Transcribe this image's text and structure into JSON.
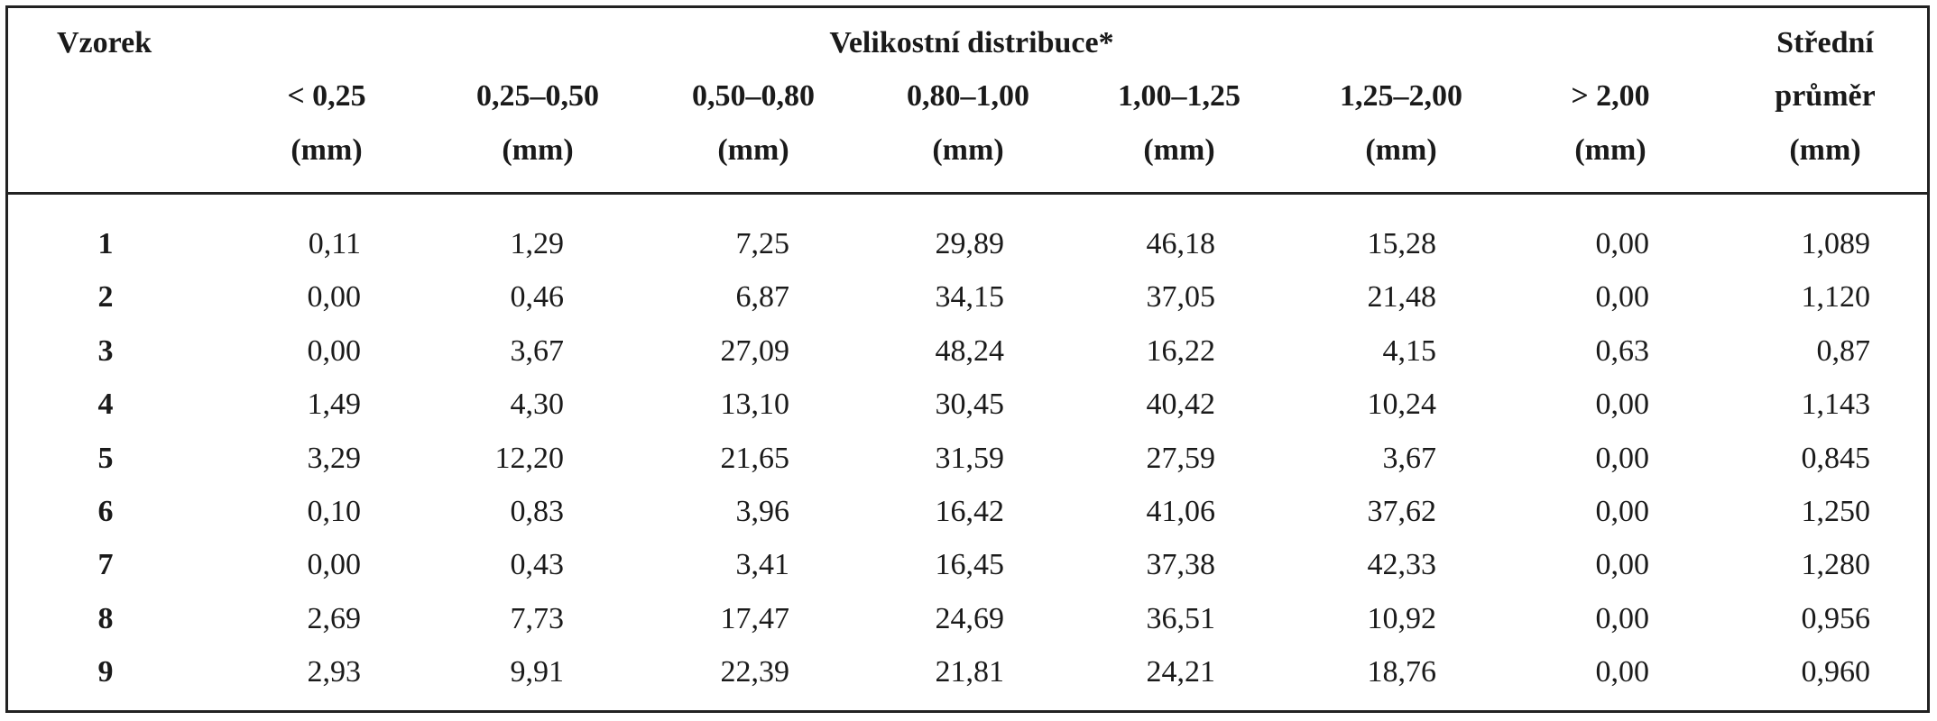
{
  "table": {
    "header": {
      "sample": "Vzorek",
      "group": "Velikostní distribuce*",
      "mean_line1": "Střední",
      "mean_line2": "průměr",
      "mean_unit": "(mm)",
      "columns": [
        {
          "range": "< 0,25",
          "unit": "(mm)"
        },
        {
          "range": "0,25–0,50",
          "unit": "(mm)"
        },
        {
          "range": "0,50–0,80",
          "unit": "(mm)"
        },
        {
          "range": "0,80–1,00",
          "unit": "(mm)"
        },
        {
          "range": "1,00–1,25",
          "unit": "(mm)"
        },
        {
          "range": "1,25–2,00",
          "unit": "(mm)"
        },
        {
          "range": "> 2,00",
          "unit": "(mm)"
        }
      ]
    },
    "rows": [
      {
        "sample": "1",
        "values": [
          "0,11",
          "1,29",
          "7,25",
          "29,89",
          "46,18",
          "15,28",
          "0,00"
        ],
        "mean": "1,089"
      },
      {
        "sample": "2",
        "values": [
          "0,00",
          "0,46",
          "6,87",
          "34,15",
          "37,05",
          "21,48",
          "0,00"
        ],
        "mean": "1,120"
      },
      {
        "sample": "3",
        "values": [
          "0,00",
          "3,67",
          "27,09",
          "48,24",
          "16,22",
          "4,15",
          "0,63"
        ],
        "mean": "0,87"
      },
      {
        "sample": "4",
        "values": [
          "1,49",
          "4,30",
          "13,10",
          "30,45",
          "40,42",
          "10,24",
          "0,00"
        ],
        "mean": "1,143"
      },
      {
        "sample": "5",
        "values": [
          "3,29",
          "12,20",
          "21,65",
          "31,59",
          "27,59",
          "3,67",
          "0,00"
        ],
        "mean": "0,845"
      },
      {
        "sample": "6",
        "values": [
          "0,10",
          "0,83",
          "3,96",
          "16,42",
          "41,06",
          "37,62",
          "0,00"
        ],
        "mean": "1,250"
      },
      {
        "sample": "7",
        "values": [
          "0,00",
          "0,43",
          "3,41",
          "16,45",
          "37,38",
          "42,33",
          "0,00"
        ],
        "mean": "1,280"
      },
      {
        "sample": "8",
        "values": [
          "2,69",
          "7,73",
          "17,47",
          "24,69",
          "36,51",
          "10,92",
          "0,00"
        ],
        "mean": "0,956"
      },
      {
        "sample": "9",
        "values": [
          "2,93",
          "9,91",
          "22,39",
          "21,81",
          "24,21",
          "18,76",
          "0,00"
        ],
        "mean": "0,960"
      }
    ]
  }
}
